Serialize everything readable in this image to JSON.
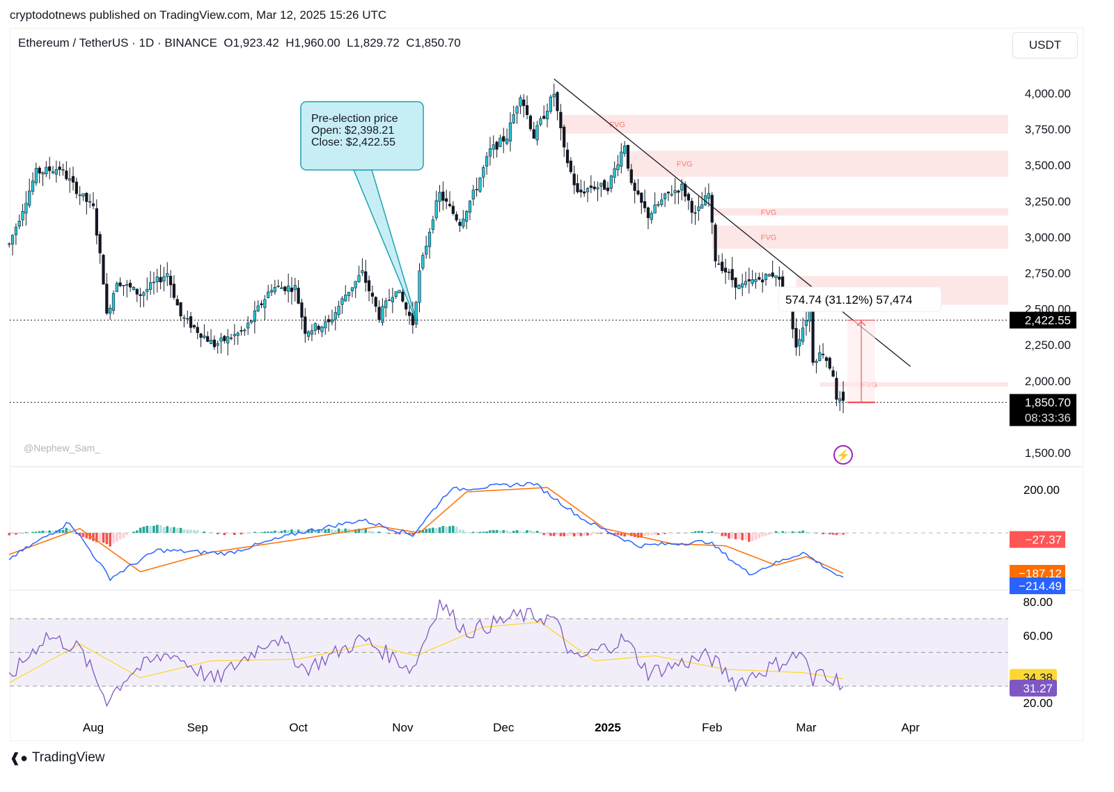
{
  "published": "cryptodotnews published on TradingView.com, Mar 12, 2025 15:26 UTC",
  "legend": "Ethereum / TetherUS · 1D · BINANCE  O1,923.42  H1,960.00  L1,829.72  C1,850.70",
  "currency_button": "USDT",
  "watermark": "@Nephew_Sam_",
  "brand": "TradingView",
  "callout": {
    "line1": "Pre-election price",
    "line2": "Open: $2,398.21",
    "line3": "Close: $2,422.55"
  },
  "measure_label": "574.74 (31.12%) 57,474",
  "fvg_label": "FVG",
  "colors": {
    "up": "#22ab94",
    "down": "#131722",
    "up_body": "#26c6da",
    "fvg": "#fde2e2",
    "macd": "#2962ff",
    "signal": "#ff6d00",
    "rsi": "#7e57c2",
    "rsi_ma": "#fdd835",
    "hist_up": "#26a69a",
    "hist_down": "#ef5350"
  },
  "chart_data": [
    {
      "type": "candlestick",
      "title": "Ethereum / TetherUS · 1D · BINANCE",
      "ylim": [
        1500,
        4150
      ],
      "yticks": [
        "4,000.00",
        "3,750.00",
        "3,500.00",
        "3,250.00",
        "3,000.00",
        "2,750.00",
        "2,500.00",
        "2,250.00",
        "2,000.00",
        "1,500.00"
      ],
      "ytick_values": [
        4000,
        3750,
        3500,
        3250,
        3000,
        2750,
        2500,
        2250,
        2000,
        1500
      ],
      "xticks": [
        "Aug",
        "Sep",
        "Oct",
        "Nov",
        "Dec",
        "2025",
        "Feb",
        "Mar",
        "Apr"
      ],
      "close_anchors": [
        [
          "2024-07-07",
          2950
        ],
        [
          "2024-07-15",
          3450
        ],
        [
          "2024-07-22",
          3480
        ],
        [
          "2024-07-28",
          3300
        ],
        [
          "2024-08-01",
          3200
        ],
        [
          "2024-08-04",
          2700
        ],
        [
          "2024-08-05",
          2450
        ],
        [
          "2024-08-08",
          2700
        ],
        [
          "2024-08-15",
          2600
        ],
        [
          "2024-08-23",
          2750
        ],
        [
          "2024-08-27",
          2450
        ],
        [
          "2024-09-06",
          2250
        ],
        [
          "2024-09-15",
          2350
        ],
        [
          "2024-09-23",
          2650
        ],
        [
          "2024-09-30",
          2650
        ],
        [
          "2024-10-03",
          2350
        ],
        [
          "2024-10-10",
          2400
        ],
        [
          "2024-10-15",
          2600
        ],
        [
          "2024-10-20",
          2750
        ],
        [
          "2024-10-25",
          2450
        ],
        [
          "2024-10-30",
          2650
        ],
        [
          "2024-11-04",
          2400
        ],
        [
          "2024-11-06",
          2750
        ],
        [
          "2024-11-10",
          3150
        ],
        [
          "2024-11-12",
          3300
        ],
        [
          "2024-11-18",
          3100
        ],
        [
          "2024-11-23",
          3350
        ],
        [
          "2024-11-27",
          3600
        ],
        [
          "2024-12-02",
          3700
        ],
        [
          "2024-12-06",
          4000
        ],
        [
          "2024-12-10",
          3700
        ],
        [
          "2024-12-16",
          4000
        ],
        [
          "2024-12-19",
          3600
        ],
        [
          "2024-12-23",
          3300
        ],
        [
          "2024-12-27",
          3350
        ],
        [
          "2025-01-01",
          3350
        ],
        [
          "2025-01-06",
          3650
        ],
        [
          "2025-01-08",
          3350
        ],
        [
          "2025-01-13",
          3150
        ],
        [
          "2025-01-19",
          3300
        ],
        [
          "2025-01-23",
          3350
        ],
        [
          "2025-01-27",
          3150
        ],
        [
          "2025-01-31",
          3300
        ],
        [
          "2025-02-02",
          2850
        ],
        [
          "2025-02-09",
          2650
        ],
        [
          "2025-02-14",
          2700
        ],
        [
          "2025-02-20",
          2750
        ],
        [
          "2025-02-24",
          2500
        ],
        [
          "2025-02-26",
          2250
        ],
        [
          "2025-03-02",
          2500
        ],
        [
          "2025-03-03",
          2150
        ],
        [
          "2025-03-06",
          2200
        ],
        [
          "2025-03-09",
          2050
        ],
        [
          "2025-03-10",
          1850
        ],
        [
          "2025-03-12",
          1850.7
        ]
      ],
      "last_ohlc": {
        "open": 1923.42,
        "high": 1960.0,
        "low": 1829.72,
        "close": 1850.7
      },
      "price_labels": {
        "pre_election": "2,422.55",
        "last": "1,850.70",
        "countdown": "08:33:36"
      },
      "pre_election": {
        "open": 2398.21,
        "close": 2422.55
      },
      "fvg_zones": [
        [
          "2024-12-18",
          3720,
          3850
        ],
        [
          "2025-01-07",
          3420,
          3600
        ],
        [
          "2025-02-01",
          3150,
          3200
        ],
        [
          "2025-02-01",
          2920,
          3080
        ],
        [
          "2025-02-26",
          2530,
          2730
        ],
        [
          "2025-03-05",
          1960,
          1990
        ]
      ],
      "trendline": [
        [
          "2024-12-16",
          4100
        ],
        [
          "2025-04-01",
          2100
        ]
      ]
    },
    {
      "type": "line",
      "title": "MACD",
      "ylim": [
        -230,
        250
      ],
      "yticks": [
        "200.00"
      ],
      "ytick_values": [
        200
      ],
      "value_labels": {
        "histogram": "−27.37",
        "signal": "−187.12",
        "macd": "−214.49"
      },
      "macd_anchors": [
        [
          "2024-07-07",
          -120
        ],
        [
          "2024-07-25",
          50
        ],
        [
          "2024-08-06",
          -210
        ],
        [
          "2024-08-20",
          -80
        ],
        [
          "2024-09-10",
          -95
        ],
        [
          "2024-10-01",
          0
        ],
        [
          "2024-10-20",
          60
        ],
        [
          "2024-11-04",
          -10
        ],
        [
          "2024-11-15",
          200
        ],
        [
          "2024-12-10",
          230
        ],
        [
          "2024-12-25",
          60
        ],
        [
          "2025-01-10",
          -60
        ],
        [
          "2025-01-31",
          -40
        ],
        [
          "2025-02-12",
          -190
        ],
        [
          "2025-02-28",
          -90
        ],
        [
          "2025-03-12",
          -214.49
        ]
      ],
      "signal_anchors": [
        [
          "2024-07-07",
          -100
        ],
        [
          "2024-07-28",
          20
        ],
        [
          "2024-08-15",
          -180
        ],
        [
          "2024-09-05",
          -90
        ],
        [
          "2024-10-01",
          -30
        ],
        [
          "2024-10-25",
          30
        ],
        [
          "2024-11-06",
          0
        ],
        [
          "2024-11-20",
          190
        ],
        [
          "2024-12-14",
          210
        ],
        [
          "2024-12-31",
          20
        ],
        [
          "2025-01-20",
          -50
        ],
        [
          "2025-02-05",
          -60
        ],
        [
          "2025-02-20",
          -150
        ],
        [
          "2025-03-01",
          -110
        ],
        [
          "2025-03-12",
          -187.12
        ]
      ]
    },
    {
      "type": "line",
      "title": "RSI",
      "ylim": [
        10,
        85
      ],
      "yticks": [
        "80.00",
        "60.00",
        "20.00"
      ],
      "ytick_values": [
        80,
        60,
        20
      ],
      "bands": [
        70,
        50,
        30
      ],
      "value_labels": {
        "rsi_ma": "34.38",
        "rsi": "31.27"
      },
      "rsi_anchors": [
        [
          "2024-07-07",
          35
        ],
        [
          "2024-07-18",
          60
        ],
        [
          "2024-07-28",
          52
        ],
        [
          "2024-08-05",
          22
        ],
        [
          "2024-08-12",
          38
        ],
        [
          "2024-08-24",
          50
        ],
        [
          "2024-09-06",
          33
        ],
        [
          "2024-09-24",
          60
        ],
        [
          "2024-10-03",
          40
        ],
        [
          "2024-10-20",
          58
        ],
        [
          "2024-11-04",
          40
        ],
        [
          "2024-11-12",
          80
        ],
        [
          "2024-11-20",
          62
        ],
        [
          "2024-12-06",
          72
        ],
        [
          "2024-12-16",
          70
        ],
        [
          "2024-12-22",
          45
        ],
        [
          "2025-01-06",
          58
        ],
        [
          "2025-01-13",
          38
        ],
        [
          "2025-01-31",
          48
        ],
        [
          "2025-02-08",
          32
        ],
        [
          "2025-02-28",
          50
        ],
        [
          "2025-03-03",
          30
        ],
        [
          "2025-03-05",
          40
        ],
        [
          "2025-03-12",
          31.27
        ]
      ],
      "rsi_ma_anchors": [
        [
          "2024-07-07",
          32
        ],
        [
          "2024-07-28",
          55
        ],
        [
          "2024-08-15",
          35
        ],
        [
          "2024-09-05",
          45
        ],
        [
          "2024-10-01",
          46
        ],
        [
          "2024-10-22",
          55
        ],
        [
          "2024-11-05",
          48
        ],
        [
          "2024-11-25",
          65
        ],
        [
          "2024-12-12",
          68
        ],
        [
          "2024-12-28",
          45
        ],
        [
          "2025-01-15",
          48
        ],
        [
          "2025-02-05",
          40
        ],
        [
          "2025-02-28",
          38
        ],
        [
          "2025-03-12",
          34.38
        ]
      ]
    }
  ]
}
